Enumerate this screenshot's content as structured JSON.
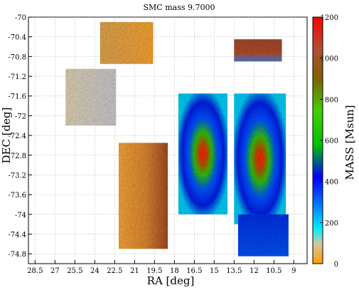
{
  "chart_data": {
    "type": "heatmap",
    "title": "SMC mass  9.7000",
    "xlabel": "RA [deg]",
    "ylabel": "DEC [deg]",
    "colorbar_label": "MASS [Msun]",
    "xlim": [
      29.0,
      8.0
    ],
    "ylim": [
      -75.0,
      -70.0
    ],
    "x_ticks": [
      "28.5",
      "27",
      "25.5",
      "24",
      "22.5",
      "21",
      "19.5",
      "18",
      "16.5",
      "15",
      "13.5",
      "12",
      "10.5",
      "9"
    ],
    "y_ticks": [
      "-70",
      "-70.4",
      "-70.8",
      "-71.2",
      "-71.6",
      "-72",
      "-72.4",
      "-72.8",
      "-73.2",
      "-73.6",
      "-74",
      "-74.4",
      "-74.8"
    ],
    "colorbar_ticks": [
      "0",
      "200",
      "400",
      "600",
      "800",
      "1000",
      "1200"
    ],
    "colorbar_range": [
      0,
      1200
    ],
    "colormap": [
      "#ffa200",
      "#c0c0c0",
      "#00ffff",
      "#0000ff",
      "#00ff00",
      "#a04010",
      "#ff0000"
    ],
    "grid": true,
    "tiles": [
      {
        "ra": [
          26.2,
          22.4
        ],
        "dec": [
          -71.05,
          -72.2
        ],
        "mass": 60
      },
      {
        "ra": [
          23.6,
          19.6
        ],
        "dec": [
          -70.1,
          -70.95
        ],
        "mass": 250
      },
      {
        "ra": [
          22.2,
          18.5
        ],
        "dec": [
          -72.55,
          -74.7
        ],
        "mass": 300
      },
      {
        "ra": [
          17.7,
          14.0
        ],
        "dec": [
          -71.55,
          -74.0
        ],
        "mass": 500
      },
      {
        "ra": [
          13.5,
          9.9
        ],
        "dec": [
          -70.45,
          -70.9
        ],
        "mass": 1000
      },
      {
        "ra": [
          13.5,
          9.6
        ],
        "dec": [
          -71.55,
          -74.2
        ],
        "mass": 800
      },
      {
        "ra": [
          13.2,
          9.4
        ],
        "dec": [
          -74.0,
          -74.85
        ],
        "mass": 300
      }
    ]
  }
}
